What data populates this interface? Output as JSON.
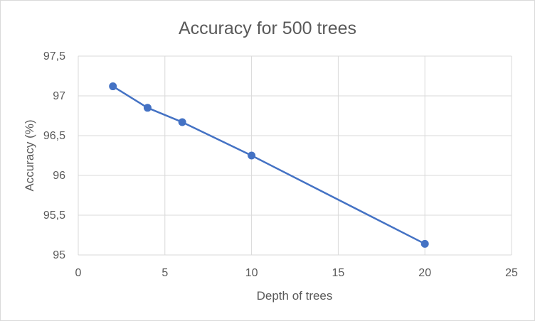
{
  "chart_data": {
    "type": "scatter",
    "title": "Accuracy for 500 trees",
    "xlabel": "Depth of trees",
    "ylabel": "Accuracy (%)",
    "xlim": [
      0,
      25
    ],
    "ylim": [
      95,
      97.5
    ],
    "x_ticks": [
      "0",
      "5",
      "10",
      "15",
      "20",
      "25"
    ],
    "y_ticks": [
      "95",
      "95,5",
      "96",
      "96,5",
      "97",
      "97,5"
    ],
    "grid": true,
    "legend": "none",
    "series": [
      {
        "x": [
          2,
          4,
          6,
          10,
          20
        ],
        "y": [
          97.12,
          96.85,
          96.67,
          96.25,
          95.14
        ],
        "color": "#4472c4",
        "lines": true,
        "markers": true
      }
    ]
  }
}
